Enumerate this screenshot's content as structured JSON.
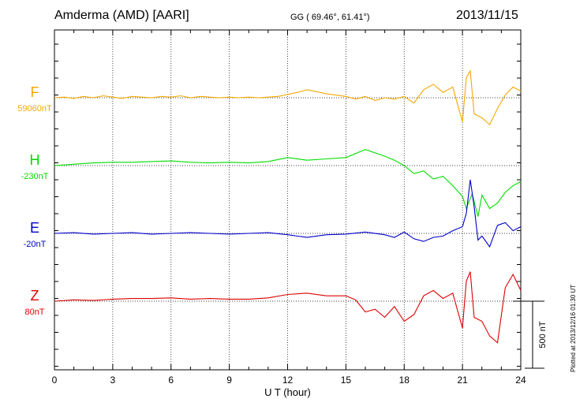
{
  "header": {
    "station": "Amderma (AMD)  [AARI]",
    "coords": "GG ( 69.46°,  61.41°)",
    "date": "2013/11/15"
  },
  "plotted_note": "Plotted at 2013/12/16 01:30 UT",
  "chart_data": {
    "type": "line",
    "xlabel": "U T (hour)",
    "xlim": [
      0,
      24
    ],
    "xticks": [
      0,
      3,
      6,
      9,
      12,
      15,
      18,
      21,
      24
    ],
    "scale_bar": {
      "label": "500 nT",
      "value": 500
    },
    "grid": true,
    "series": [
      {
        "name": "F",
        "baseline_label": "59060nT",
        "color": "#f5a800",
        "points": [
          [
            0,
            0
          ],
          [
            0.5,
            5
          ],
          [
            1,
            -5
          ],
          [
            1.5,
            10
          ],
          [
            2,
            0
          ],
          [
            2.5,
            15
          ],
          [
            3,
            5
          ],
          [
            3.5,
            -5
          ],
          [
            4,
            10
          ],
          [
            4.5,
            5
          ],
          [
            5,
            0
          ],
          [
            5.5,
            10
          ],
          [
            6,
            5
          ],
          [
            6.5,
            15
          ],
          [
            7,
            0
          ],
          [
            7.5,
            10
          ],
          [
            8,
            5
          ],
          [
            8.5,
            0
          ],
          [
            9,
            5
          ],
          [
            9.5,
            0
          ],
          [
            10,
            5
          ],
          [
            10.5,
            0
          ],
          [
            11,
            5
          ],
          [
            11.5,
            10
          ],
          [
            12,
            25
          ],
          [
            12.5,
            40
          ],
          [
            13,
            60
          ],
          [
            13.5,
            45
          ],
          [
            14,
            30
          ],
          [
            14.5,
            20
          ],
          [
            15,
            10
          ],
          [
            15.5,
            -10
          ],
          [
            16,
            10
          ],
          [
            16.5,
            -20
          ],
          [
            17,
            0
          ],
          [
            17.5,
            -10
          ],
          [
            18,
            10
          ],
          [
            18.5,
            -40
          ],
          [
            19,
            60
          ],
          [
            19.5,
            100
          ],
          [
            20,
            40
          ],
          [
            20.5,
            80
          ],
          [
            21,
            -180
          ],
          [
            21.2,
            150
          ],
          [
            21.4,
            200
          ],
          [
            21.6,
            -120
          ],
          [
            22,
            -150
          ],
          [
            22.4,
            -200
          ],
          [
            22.8,
            -80
          ],
          [
            23.2,
            20
          ],
          [
            23.6,
            80
          ],
          [
            24,
            50
          ]
        ]
      },
      {
        "name": "H",
        "baseline_label": "-230nT",
        "color": "#00dd00",
        "points": [
          [
            0,
            0
          ],
          [
            1,
            10
          ],
          [
            2,
            20
          ],
          [
            3,
            25
          ],
          [
            4,
            25
          ],
          [
            5,
            30
          ],
          [
            6,
            35
          ],
          [
            7,
            25
          ],
          [
            8,
            20
          ],
          [
            9,
            25
          ],
          [
            10,
            20
          ],
          [
            11,
            30
          ],
          [
            12,
            60
          ],
          [
            13,
            40
          ],
          [
            14,
            50
          ],
          [
            15,
            60
          ],
          [
            16,
            120
          ],
          [
            17,
            70
          ],
          [
            17.5,
            40
          ],
          [
            18,
            0
          ],
          [
            18.5,
            -60
          ],
          [
            19,
            -40
          ],
          [
            19.5,
            -100
          ],
          [
            20,
            -80
          ],
          [
            20.5,
            -150
          ],
          [
            21,
            -230
          ],
          [
            21.2,
            -320
          ],
          [
            21.5,
            -210
          ],
          [
            21.8,
            -380
          ],
          [
            22,
            -220
          ],
          [
            22.4,
            -320
          ],
          [
            22.8,
            -280
          ],
          [
            23.2,
            -200
          ],
          [
            23.6,
            -150
          ],
          [
            24,
            -120
          ]
        ]
      },
      {
        "name": "E",
        "baseline_label": "-20nT",
        "color": "#0000cc",
        "points": [
          [
            0,
            0
          ],
          [
            1,
            5
          ],
          [
            2,
            -5
          ],
          [
            3,
            0
          ],
          [
            4,
            5
          ],
          [
            5,
            -5
          ],
          [
            6,
            0
          ],
          [
            7,
            5
          ],
          [
            8,
            0
          ],
          [
            9,
            -5
          ],
          [
            10,
            0
          ],
          [
            11,
            5
          ],
          [
            12,
            -10
          ],
          [
            13,
            -30
          ],
          [
            14,
            -10
          ],
          [
            15,
            -5
          ],
          [
            16,
            10
          ],
          [
            17,
            -10
          ],
          [
            17.5,
            -30
          ],
          [
            18,
            10
          ],
          [
            18.5,
            -40
          ],
          [
            19,
            -60
          ],
          [
            19.5,
            -30
          ],
          [
            20,
            -20
          ],
          [
            20.5,
            20
          ],
          [
            21,
            50
          ],
          [
            21.2,
            150
          ],
          [
            21.4,
            400
          ],
          [
            21.6,
            200
          ],
          [
            21.8,
            -50
          ],
          [
            22,
            -20
          ],
          [
            22.4,
            -100
          ],
          [
            22.8,
            60
          ],
          [
            23.2,
            80
          ],
          [
            23.6,
            20
          ],
          [
            24,
            50
          ]
        ]
      },
      {
        "name": "Z",
        "baseline_label": "80nT",
        "color": "#dd0000",
        "points": [
          [
            0,
            0
          ],
          [
            1,
            10
          ],
          [
            2,
            5
          ],
          [
            3,
            15
          ],
          [
            4,
            20
          ],
          [
            5,
            20
          ],
          [
            6,
            25
          ],
          [
            7,
            15
          ],
          [
            8,
            20
          ],
          [
            9,
            15
          ],
          [
            10,
            15
          ],
          [
            11,
            25
          ],
          [
            12,
            50
          ],
          [
            13,
            60
          ],
          [
            14,
            40
          ],
          [
            15,
            40
          ],
          [
            15.5,
            10
          ],
          [
            16,
            -80
          ],
          [
            16.5,
            -60
          ],
          [
            17,
            -120
          ],
          [
            17.5,
            -40
          ],
          [
            18,
            -150
          ],
          [
            18.5,
            -100
          ],
          [
            19,
            40
          ],
          [
            19.5,
            80
          ],
          [
            20,
            20
          ],
          [
            20.5,
            60
          ],
          [
            21,
            -200
          ],
          [
            21.2,
            150
          ],
          [
            21.4,
            220
          ],
          [
            21.6,
            -120
          ],
          [
            22,
            -150
          ],
          [
            22.4,
            -260
          ],
          [
            22.8,
            -310
          ],
          [
            23.2,
            100
          ],
          [
            23.6,
            200
          ],
          [
            24,
            80
          ]
        ]
      }
    ]
  }
}
